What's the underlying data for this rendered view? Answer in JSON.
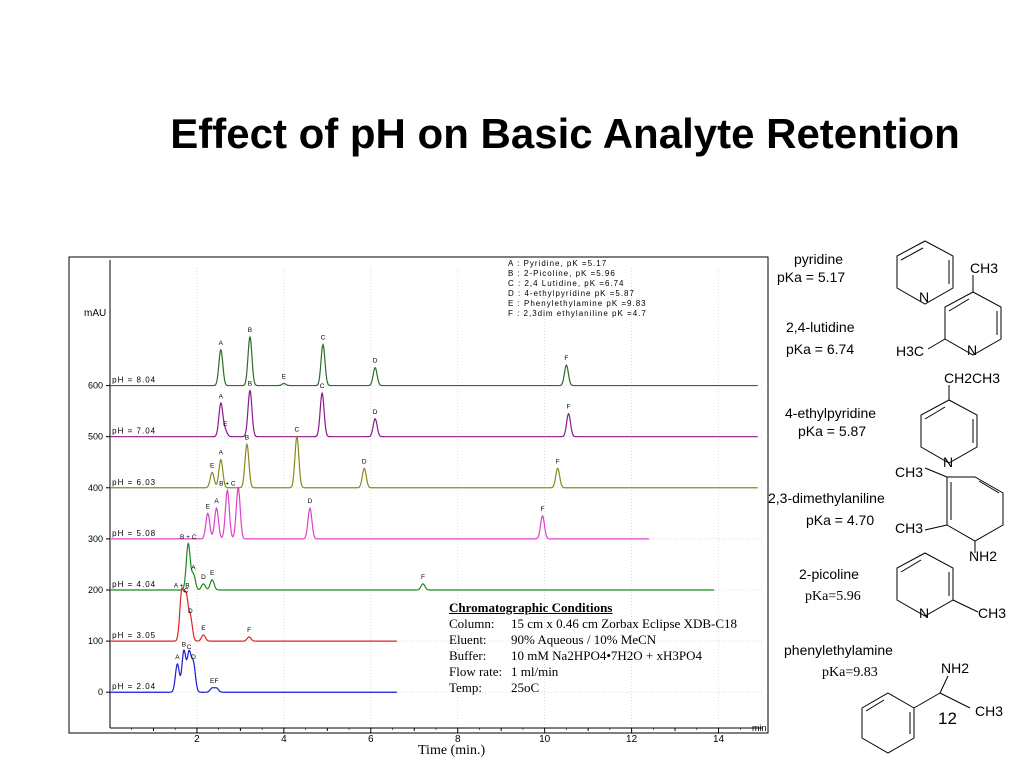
{
  "slide": {
    "title": "Effect of pH on Basic Analyte Retention",
    "page_number": "12",
    "x_axis_caption": "Time (min.)"
  },
  "chart_data": {
    "type": "line",
    "title": "",
    "ylabel": "mAU",
    "xlabel": "min",
    "x_ticks": [
      2,
      4,
      6,
      8,
      10,
      12,
      14
    ],
    "y_ticks": [
      0,
      100,
      200,
      300,
      400,
      500,
      600
    ],
    "xlim": [
      0,
      15
    ],
    "ylim": [
      -70,
      830
    ],
    "legend_box": [
      "A : Pyridine,          pK  =5.17",
      "B : 2-Picoline,         pK  =5.96",
      "C : 2,4 Lutidine,       pK  =6.74",
      "D : 4-ethylpyridine     pK  =5.87",
      "E : Phenylethylamine pK  =9.83",
      "F : 2,3dim ethylaniline pK  =4.7"
    ],
    "series": [
      {
        "name": "pH = 8.04",
        "color": "#2e6b2e",
        "baseline": 600,
        "x_end": 14.9,
        "peaks": [
          {
            "label": "A",
            "t": 2.55,
            "h": 70
          },
          {
            "label": "B",
            "t": 3.22,
            "h": 95
          },
          {
            "label": "E",
            "t": 4.0,
            "h": 4
          },
          {
            "label": "C",
            "t": 4.9,
            "h": 80
          },
          {
            "label": "D",
            "t": 6.1,
            "h": 35
          },
          {
            "label": "F",
            "t": 10.5,
            "h": 40
          }
        ]
      },
      {
        "name": "pH = 7.04",
        "color": "#8b1a8b",
        "baseline": 500,
        "x_end": 14.9,
        "peaks": [
          {
            "label": "A",
            "t": 2.55,
            "h": 65
          },
          {
            "label": "E",
            "t": 2.65,
            "h": 12
          },
          {
            "label": "B",
            "t": 3.22,
            "h": 90
          },
          {
            "label": "C",
            "t": 4.88,
            "h": 85
          },
          {
            "label": "D",
            "t": 6.1,
            "h": 35
          },
          {
            "label": "F",
            "t": 10.55,
            "h": 45
          }
        ]
      },
      {
        "name": "pH = 6.03",
        "color": "#8a8a1a",
        "baseline": 400,
        "x_end": 14.9,
        "peaks": [
          {
            "label": "E",
            "t": 2.35,
            "h": 30
          },
          {
            "label": "A",
            "t": 2.55,
            "h": 55
          },
          {
            "label": "B",
            "t": 3.15,
            "h": 85
          },
          {
            "label": "C",
            "t": 4.3,
            "h": 100
          },
          {
            "label": "D",
            "t": 5.85,
            "h": 38
          },
          {
            "label": "F",
            "t": 10.3,
            "h": 38
          }
        ]
      },
      {
        "name": "pH = 5.08",
        "color": "#e040c8",
        "baseline": 300,
        "x_end": 12.4,
        "peaks": [
          {
            "label": "E",
            "t": 2.25,
            "h": 50
          },
          {
            "label": "A",
            "t": 2.45,
            "h": 60
          },
          {
            "label": "B + C",
            "t": 2.7,
            "h": 95
          },
          {
            "label": "",
            "t": 2.95,
            "h": 100
          },
          {
            "label": "D",
            "t": 4.6,
            "h": 60
          },
          {
            "label": "F",
            "t": 9.95,
            "h": 45
          }
        ]
      },
      {
        "name": "pH = 4.04",
        "color": "#1a8a1a",
        "baseline": 200,
        "x_end": 13.9,
        "peaks": [
          {
            "label": "B + C",
            "t": 1.8,
            "h": 90
          },
          {
            "label": "A",
            "t": 1.92,
            "h": 30
          },
          {
            "label": "D",
            "t": 2.15,
            "h": 12
          },
          {
            "label": "E",
            "t": 2.35,
            "h": 20
          },
          {
            "label": "F",
            "t": 7.2,
            "h": 12
          }
        ]
      },
      {
        "name": "pH = 3.05",
        "color": "#e02020",
        "baseline": 100,
        "x_end": 6.6,
        "peaks": [
          {
            "label": "A + B",
            "t": 1.65,
            "h": 95
          },
          {
            "label": "C",
            "t": 1.75,
            "h": 85
          },
          {
            "label": "D",
            "t": 1.85,
            "h": 45
          },
          {
            "label": "E",
            "t": 2.15,
            "h": 12
          },
          {
            "label": "F",
            "t": 3.2,
            "h": 8
          }
        ]
      },
      {
        "name": "pH = 2.04",
        "color": "#1a1ad0",
        "baseline": 0,
        "x_end": 6.6,
        "peaks": [
          {
            "label": "A",
            "t": 1.55,
            "h": 55
          },
          {
            "label": "B",
            "t": 1.7,
            "h": 80
          },
          {
            "label": "C",
            "t": 1.82,
            "h": 75
          },
          {
            "label": "D",
            "t": 1.92,
            "h": 55
          },
          {
            "label": "E",
            "t": 2.35,
            "h": 8
          },
          {
            "label": "F",
            "t": 2.45,
            "h": 8
          }
        ]
      }
    ]
  },
  "conditions": {
    "heading": "Chromatographic Conditions",
    "column_label": "Column:",
    "column_value": "15 cm x 0.46 cm Zorbax Eclipse XDB-C18",
    "eluent_label": "Eluent:",
    "eluent_value": "90% Aqueous / 10% MeCN",
    "buffer_label": "Buffer:",
    "buffer_value": "10 mM Na2HPO4•7H2O + xH3PO4",
    "flow_label": "Flow rate:",
    "flow_value": "1 ml/min",
    "temp_label": "Temp:",
    "temp_value": "25oC"
  },
  "compounds": [
    {
      "name": "pyridine",
      "pka": "pKa = 5.17"
    },
    {
      "name": "2,4-lutidine",
      "pka": "pKa = 6.74"
    },
    {
      "name": "4-ethylpyridine",
      "pka": "pKa = 5.87"
    },
    {
      "name": "2,3-dimethylaniline",
      "pka": "pKa = 4.70"
    },
    {
      "name": "2-picoline",
      "pka": "pKa=5.96"
    },
    {
      "name": "phenylethylamine",
      "pka": "pKa=9.83"
    }
  ],
  "structure_labels": {
    "pyridine_n": "N",
    "lutidine_ch3_top": "CH3",
    "lutidine_h3c": "H3C",
    "lutidine_n": "N",
    "ethylpyridine_ch2ch3": "CH2CH3",
    "ethylpyridine_n": "N",
    "dma_ch3_a": "CH3",
    "dma_ch3_b": "CH3",
    "dma_nh2": "NH2",
    "picoline_n": "N",
    "picoline_ch3": "CH3",
    "pea_nh2": "NH2",
    "pea_ch3": "CH3"
  }
}
